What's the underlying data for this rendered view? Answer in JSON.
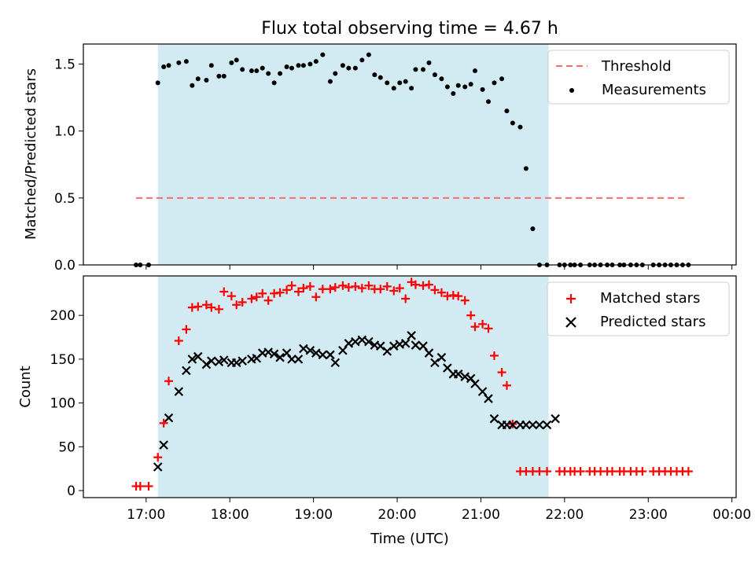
{
  "figure": {
    "title": "Flux total observing time = 4.67 h",
    "xlabel": "Time (UTC)",
    "x_tick_labels": [
      "17:00",
      "18:00",
      "19:00",
      "20:00",
      "21:00",
      "22:00",
      "23:00",
      "00:00"
    ],
    "colors": {
      "observing_span": "#add8e6",
      "threshold": "#ff6b6b",
      "measurements": "#000000",
      "matched": "#ff0000",
      "predicted": "#000000"
    }
  },
  "chart_data": [
    {
      "type": "scatter",
      "panel": "top",
      "ylabel": "Matched/Predicted stars",
      "x_unit": "hours since 17:00 UTC",
      "xlim": [
        -0.75,
        7.05
      ],
      "ylim": [
        0,
        1.65
      ],
      "y_ticks": [
        0.0,
        0.5,
        1.0,
        1.5
      ],
      "y_tick_labels": [
        "0.0",
        "0.5",
        "1.0",
        "1.5"
      ],
      "observing_span": [
        0.14,
        4.81
      ],
      "threshold": {
        "name": "Threshold",
        "y": 0.5,
        "x_range": [
          -0.12,
          6.48
        ]
      },
      "legend": {
        "position": "top-right",
        "entries": [
          "Threshold",
          "Measurements"
        ]
      },
      "series": [
        {
          "name": "Measurements",
          "x": [
            -0.12,
            -0.07,
            0.03,
            0.14,
            0.21,
            0.27,
            0.39,
            0.48,
            0.55,
            0.62,
            0.72,
            0.78,
            0.87,
            0.93,
            1.02,
            1.08,
            1.15,
            1.26,
            1.32,
            1.39,
            1.46,
            1.53,
            1.6,
            1.68,
            1.74,
            1.82,
            1.88,
            1.96,
            2.03,
            2.11,
            2.2,
            2.26,
            2.35,
            2.42,
            2.5,
            2.58,
            2.66,
            2.73,
            2.8,
            2.88,
            2.96,
            3.03,
            3.1,
            3.17,
            3.22,
            3.31,
            3.38,
            3.45,
            3.53,
            3.6,
            3.67,
            3.73,
            3.81,
            3.88,
            3.93,
            4.02,
            4.09,
            4.16,
            4.25,
            4.31,
            4.38,
            4.47,
            4.54,
            4.62,
            4.7,
            4.79,
            4.94,
            5.0,
            5.07,
            5.12,
            5.19,
            5.3,
            5.36,
            5.43,
            5.51,
            5.57,
            5.66,
            5.71,
            5.79,
            5.86,
            5.93,
            6.06,
            6.13,
            6.2,
            6.27,
            6.34,
            6.41,
            6.48
          ],
          "y": [
            0,
            0,
            0,
            1.36,
            1.48,
            1.49,
            1.51,
            1.52,
            1.34,
            1.39,
            1.38,
            1.49,
            1.41,
            1.41,
            1.51,
            1.53,
            1.46,
            1.45,
            1.45,
            1.47,
            1.43,
            1.36,
            1.43,
            1.48,
            1.47,
            1.49,
            1.49,
            1.5,
            1.52,
            1.57,
            1.37,
            1.43,
            1.49,
            1.47,
            1.47,
            1.53,
            1.57,
            1.42,
            1.4,
            1.36,
            1.32,
            1.36,
            1.37,
            1.32,
            1.46,
            1.46,
            1.51,
            1.42,
            1.39,
            1.33,
            1.28,
            1.34,
            1.33,
            1.35,
            1.45,
            1.31,
            1.22,
            1.36,
            1.39,
            1.15,
            1.06,
            1.03,
            0.72,
            0.27,
            0,
            0,
            0,
            0,
            0,
            0,
            0,
            0,
            0,
            0,
            0,
            0,
            0,
            0,
            0,
            0,
            0,
            0,
            0,
            0,
            0,
            0,
            0,
            0
          ]
        }
      ]
    },
    {
      "type": "scatter",
      "panel": "bottom",
      "ylabel": "Count",
      "x_unit": "hours since 17:00 UTC",
      "xlim": [
        -0.75,
        7.05
      ],
      "ylim": [
        -8,
        245
      ],
      "y_ticks": [
        0,
        50,
        100,
        150,
        200
      ],
      "y_tick_labels": [
        "0",
        "50",
        "100",
        "150",
        "200"
      ],
      "observing_span": [
        0.14,
        4.81
      ],
      "legend": {
        "position": "top-right",
        "entries": [
          "Matched stars",
          "Predicted stars"
        ]
      },
      "series": [
        {
          "name": "Matched stars",
          "x": [
            -0.12,
            -0.07,
            0.03,
            0.14,
            0.21,
            0.27,
            0.39,
            0.48,
            0.55,
            0.62,
            0.72,
            0.78,
            0.87,
            0.93,
            1.02,
            1.08,
            1.15,
            1.26,
            1.32,
            1.39,
            1.46,
            1.53,
            1.6,
            1.68,
            1.74,
            1.82,
            1.88,
            1.96,
            2.03,
            2.11,
            2.2,
            2.26,
            2.35,
            2.42,
            2.5,
            2.58,
            2.66,
            2.73,
            2.8,
            2.88,
            2.96,
            3.03,
            3.1,
            3.17,
            3.22,
            3.31,
            3.38,
            3.45,
            3.53,
            3.6,
            3.67,
            3.73,
            3.81,
            3.88,
            3.93,
            4.02,
            4.09,
            4.16,
            4.25,
            4.31,
            4.38,
            4.47,
            4.54,
            4.62,
            4.7,
            4.79,
            4.94,
            5.0,
            5.07,
            5.12,
            5.19,
            5.3,
            5.36,
            5.43,
            5.51,
            5.57,
            5.66,
            5.71,
            5.79,
            5.86,
            5.93,
            6.06,
            6.13,
            6.2,
            6.27,
            6.34,
            6.41,
            6.48
          ],
          "y": [
            5,
            5,
            5,
            38,
            77,
            125,
            171,
            184,
            209,
            210,
            212,
            209,
            207,
            227,
            222,
            212,
            215,
            219,
            221,
            225,
            217,
            225,
            226,
            229,
            234,
            227,
            231,
            233,
            221,
            230,
            230,
            232,
            234,
            232,
            233,
            231,
            234,
            230,
            230,
            233,
            228,
            231,
            219,
            238,
            235,
            234,
            235,
            229,
            226,
            222,
            223,
            222,
            217,
            200,
            187,
            190,
            185,
            154,
            135,
            120,
            76,
            22,
            22,
            22,
            22,
            22,
            22,
            22,
            22,
            22,
            22,
            22,
            22,
            22,
            22,
            22,
            22,
            22,
            22,
            22,
            22,
            22,
            22,
            22,
            22,
            22,
            22,
            22
          ]
        },
        {
          "name": "Predicted stars",
          "x": [
            0.14,
            0.21,
            0.27,
            0.39,
            0.48,
            0.55,
            0.62,
            0.72,
            0.78,
            0.87,
            0.93,
            1.02,
            1.08,
            1.15,
            1.26,
            1.32,
            1.39,
            1.46,
            1.53,
            1.6,
            1.68,
            1.74,
            1.82,
            1.88,
            1.96,
            2.03,
            2.11,
            2.2,
            2.26,
            2.35,
            2.42,
            2.5,
            2.58,
            2.66,
            2.73,
            2.8,
            2.88,
            2.96,
            3.03,
            3.1,
            3.17,
            3.22,
            3.31,
            3.38,
            3.45,
            3.53,
            3.6,
            3.67,
            3.73,
            3.81,
            3.88,
            3.93,
            4.02,
            4.09,
            4.16,
            4.25,
            4.31,
            4.38,
            4.47,
            4.54,
            4.62,
            4.7,
            4.79,
            4.89
          ],
          "y": [
            27,
            52,
            83,
            113,
            137,
            150,
            153,
            144,
            148,
            147,
            149,
            146,
            146,
            148,
            150,
            151,
            157,
            158,
            156,
            152,
            157,
            150,
            150,
            162,
            160,
            157,
            155,
            155,
            146,
            160,
            168,
            170,
            172,
            170,
            166,
            165,
            159,
            165,
            167,
            168,
            177,
            166,
            165,
            157,
            146,
            152,
            140,
            133,
            133,
            130,
            128,
            122,
            113,
            105,
            82,
            75,
            75,
            75,
            75,
            75,
            75,
            75,
            75,
            82
          ]
        }
      ]
    }
  ]
}
